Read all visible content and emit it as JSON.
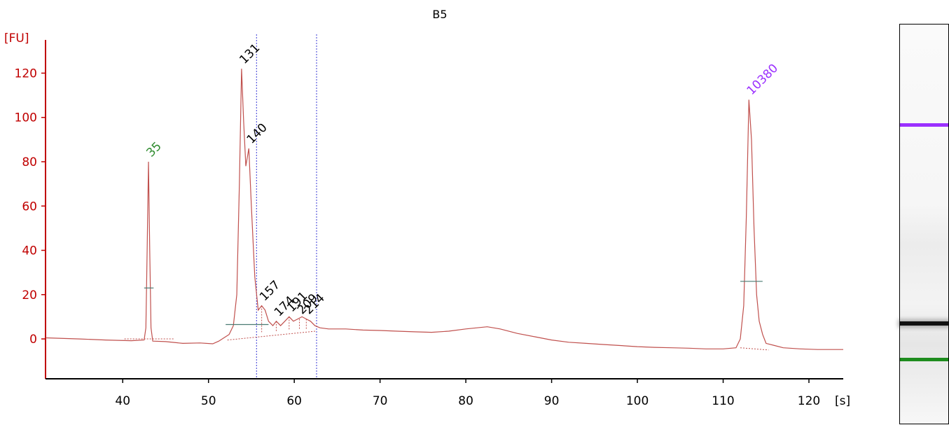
{
  "title": "B5",
  "chart_data": {
    "type": "line",
    "title": "B5",
    "xlabel": "[s]",
    "ylabel": "[FU]",
    "xlim": [
      31,
      124
    ],
    "ylim": [
      -18,
      135
    ],
    "xticks": [
      40,
      50,
      60,
      70,
      80,
      90,
      100,
      110,
      120
    ],
    "yticks": [
      0,
      20,
      40,
      60,
      80,
      100,
      120
    ],
    "grid": false,
    "series": [
      {
        "color": "#c0504d",
        "points": [
          [
            31,
            0.5
          ],
          [
            35,
            0
          ],
          [
            38,
            -0.5
          ],
          [
            41,
            -0.8
          ],
          [
            42.5,
            -0.5
          ],
          [
            42.7,
            5
          ],
          [
            42.85,
            40
          ],
          [
            43.0,
            80
          ],
          [
            43.15,
            40
          ],
          [
            43.3,
            5
          ],
          [
            43.5,
            -1
          ],
          [
            45,
            -1.2
          ],
          [
            47,
            -2
          ],
          [
            49,
            -1.8
          ],
          [
            50.5,
            -2.2
          ],
          [
            51.2,
            -1
          ],
          [
            51.8,
            0.5
          ],
          [
            52.4,
            2
          ],
          [
            52.9,
            6
          ],
          [
            53.3,
            20
          ],
          [
            53.6,
            70
          ],
          [
            53.85,
            122
          ],
          [
            54.1,
            98
          ],
          [
            54.35,
            78
          ],
          [
            54.7,
            86
          ],
          [
            55.0,
            60
          ],
          [
            55.4,
            28
          ],
          [
            55.8,
            13
          ],
          [
            56.2,
            15
          ],
          [
            56.6,
            13
          ],
          [
            57.0,
            8
          ],
          [
            57.5,
            6
          ],
          [
            57.9,
            8
          ],
          [
            58.4,
            6
          ],
          [
            58.9,
            8
          ],
          [
            59.4,
            10
          ],
          [
            59.9,
            8
          ],
          [
            60.4,
            9
          ],
          [
            60.9,
            10
          ],
          [
            61.4,
            9
          ],
          [
            61.9,
            8
          ],
          [
            62.4,
            6
          ],
          [
            63,
            5
          ],
          [
            64,
            4.5
          ],
          [
            66,
            4.5
          ],
          [
            68,
            4
          ],
          [
            70,
            3.8
          ],
          [
            72,
            3.5
          ],
          [
            74,
            3.2
          ],
          [
            76,
            3
          ],
          [
            78,
            3.5
          ],
          [
            80,
            4.5
          ],
          [
            82.5,
            5.5
          ],
          [
            84,
            4.5
          ],
          [
            86,
            2.5
          ],
          [
            88,
            1
          ],
          [
            90,
            -0.5
          ],
          [
            92,
            -1.5
          ],
          [
            94,
            -2
          ],
          [
            96,
            -2.5
          ],
          [
            98,
            -3
          ],
          [
            100,
            -3.5
          ],
          [
            102,
            -3.8
          ],
          [
            104,
            -4
          ],
          [
            106,
            -4.2
          ],
          [
            108,
            -4.5
          ],
          [
            110,
            -4.5
          ],
          [
            111.5,
            -4
          ],
          [
            112,
            0
          ],
          [
            112.4,
            15
          ],
          [
            112.7,
            55
          ],
          [
            113.0,
            108
          ],
          [
            113.3,
            90
          ],
          [
            113.6,
            50
          ],
          [
            113.9,
            20
          ],
          [
            114.2,
            8
          ],
          [
            114.6,
            2
          ],
          [
            115,
            -2
          ],
          [
            116,
            -3
          ],
          [
            117,
            -4
          ],
          [
            119,
            -4.5
          ],
          [
            121,
            -4.8
          ],
          [
            123,
            -4.8
          ],
          [
            124,
            -4.8
          ]
        ]
      }
    ],
    "peak_labels": [
      {
        "text": "35",
        "x": 43.0,
        "y": 80,
        "color": "#2e8b2e"
      },
      {
        "text": "131",
        "x": 53.85,
        "y": 122,
        "color": "#000000"
      },
      {
        "text": "140",
        "x": 54.7,
        "y": 86,
        "color": "#000000"
      },
      {
        "text": "157",
        "x": 56.2,
        "y": 15,
        "color": "#000000"
      },
      {
        "text": "174",
        "x": 57.9,
        "y": 8,
        "color": "#000000"
      },
      {
        "text": "191",
        "x": 59.4,
        "y": 10,
        "color": "#000000"
      },
      {
        "text": "209",
        "x": 60.6,
        "y": 9,
        "color": "#000000"
      },
      {
        "text": "214",
        "x": 61.4,
        "y": 9,
        "color": "#000000"
      },
      {
        "text": "10380",
        "x": 113.0,
        "y": 108,
        "color": "#9b30ff"
      }
    ],
    "region_lines": [
      55.6,
      62.6
    ],
    "baselines": [
      {
        "x1": 40.2,
        "y1": 0,
        "x2": 46.0,
        "y2": 0
      },
      {
        "x1": 52.2,
        "y1": -0.5,
        "x2": 62.5,
        "y2": 3.5
      },
      {
        "x1": 112.0,
        "y1": -4,
        "x2": 115.3,
        "y2": -5
      }
    ],
    "width_markers": [
      {
        "x1": 42.5,
        "x2": 43.6,
        "y": 23
      },
      {
        "x1": 52.0,
        "x2": 57.0,
        "y": 6.5
      },
      {
        "x1": 112.0,
        "x2": 114.6,
        "y": 26
      }
    ],
    "peak_dropdowns": [
      43.0,
      53.85,
      54.7,
      56.2,
      57.9,
      59.4,
      60.6,
      61.4,
      113.0
    ],
    "colors": {
      "trace": "#c0504d",
      "axis": "#c00000",
      "tick_label": "#c00000",
      "region": "#3a3ad6",
      "marker": "#4a7a72"
    }
  },
  "gel": {
    "bands": [
      {
        "name": "upper-marker-band",
        "color": "#9b30ff",
        "position": 0.25
      },
      {
        "name": "main-band",
        "color": "#111111",
        "position": 0.745
      },
      {
        "name": "lower-marker-band",
        "color": "#1e8c1e",
        "position": 0.835
      }
    ]
  }
}
